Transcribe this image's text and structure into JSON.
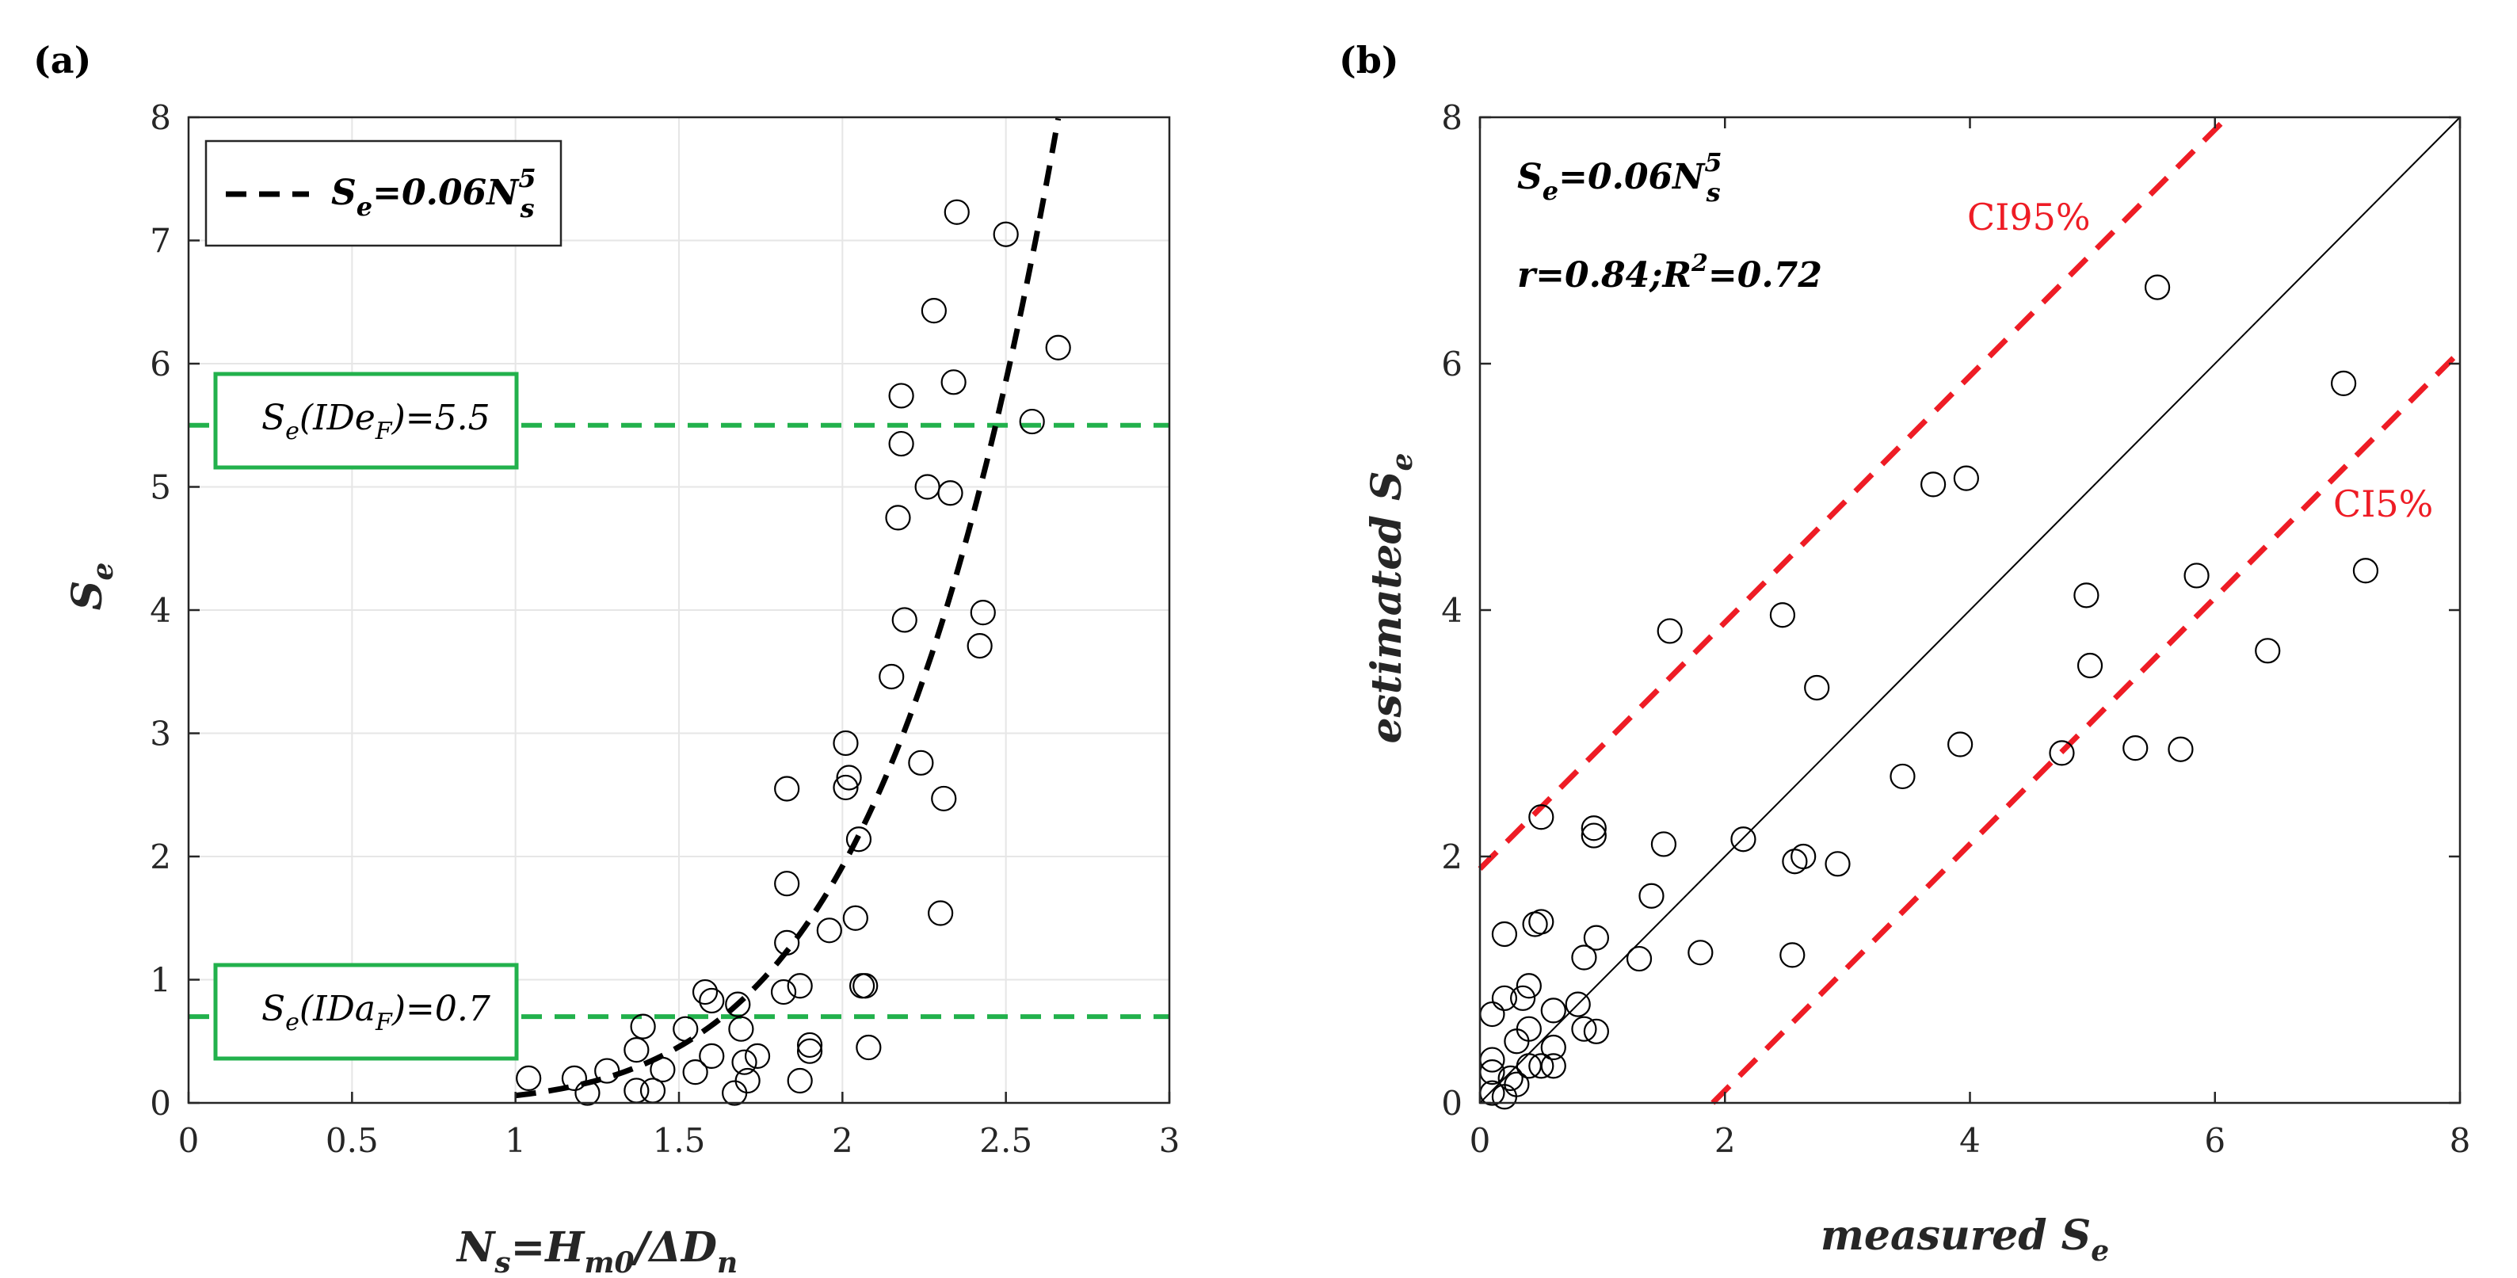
{
  "chart_data": [
    {
      "panel_label": "(a)",
      "type": "scatter",
      "xlim": [
        0,
        3
      ],
      "ylim": [
        0,
        8
      ],
      "xticks": [
        "0",
        "0.5",
        "1",
        "1.5",
        "2",
        "2.5",
        "3"
      ],
      "yticks": [
        "0",
        "1",
        "2",
        "3",
        "4",
        "5",
        "6",
        "7",
        "8"
      ],
      "xlabel": {
        "main": "N",
        "sub": "s",
        "mid": "=H",
        "sub2": "m0",
        "tail": "/ΔD",
        "sub3": "n"
      },
      "ylabel": {
        "main": "S",
        "sub": "e"
      },
      "grid": true,
      "legend": {
        "position": "top-left",
        "entry": {
          "main": "S",
          "sub": "e",
          "mid": "=0.06N",
          "sup": "5",
          "sub2": "s"
        }
      },
      "fit_curve": {
        "formula": "Se = 0.06 * Ns^5",
        "coef": 0.06,
        "power": 5,
        "x_range": [
          1.0,
          2.66
        ],
        "color": "#000000",
        "style": "dashed"
      },
      "thresholds": [
        {
          "y": 5.5,
          "color": "#22b14c",
          "label": {
            "main": "S",
            "sub": "e",
            "mid": "(IDe",
            "sub2": "F",
            "tail": ")=5.5"
          }
        },
        {
          "y": 0.7,
          "color": "#22b14c",
          "label": {
            "main": "S",
            "sub": "e",
            "mid": "(IDa",
            "sub2": "F",
            "tail": ")=0.7"
          }
        }
      ],
      "points": [
        [
          1.04,
          0.2
        ],
        [
          1.18,
          0.2
        ],
        [
          1.22,
          0.08
        ],
        [
          1.28,
          0.26
        ],
        [
          1.37,
          0.43
        ],
        [
          1.37,
          0.1
        ],
        [
          1.39,
          0.62
        ],
        [
          1.42,
          0.1
        ],
        [
          1.45,
          0.27
        ],
        [
          1.52,
          0.6
        ],
        [
          1.55,
          0.25
        ],
        [
          1.58,
          0.9
        ],
        [
          1.6,
          0.83
        ],
        [
          1.6,
          0.38
        ],
        [
          1.67,
          0.08
        ],
        [
          1.68,
          0.8
        ],
        [
          1.69,
          0.6
        ],
        [
          1.7,
          0.33
        ],
        [
          1.71,
          0.18
        ],
        [
          1.74,
          0.38
        ],
        [
          1.82,
          0.9
        ],
        [
          1.83,
          1.3
        ],
        [
          1.83,
          1.78
        ],
        [
          1.83,
          2.55
        ],
        [
          1.87,
          0.95
        ],
        [
          1.87,
          0.18
        ],
        [
          1.9,
          0.42
        ],
        [
          1.9,
          0.47
        ],
        [
          1.96,
          1.4
        ],
        [
          2.01,
          2.92
        ],
        [
          2.01,
          2.56
        ],
        [
          2.02,
          2.64
        ],
        [
          2.04,
          1.5
        ],
        [
          2.05,
          2.14
        ],
        [
          2.06,
          0.95
        ],
        [
          2.07,
          0.95
        ],
        [
          2.08,
          0.45
        ],
        [
          2.15,
          3.46
        ],
        [
          2.17,
          4.75
        ],
        [
          2.18,
          5.35
        ],
        [
          2.18,
          5.74
        ],
        [
          2.19,
          3.92
        ],
        [
          2.24,
          2.76
        ],
        [
          2.26,
          5.0
        ],
        [
          2.28,
          6.43
        ],
        [
          2.3,
          1.54
        ],
        [
          2.31,
          2.47
        ],
        [
          2.33,
          4.95
        ],
        [
          2.34,
          5.85
        ],
        [
          2.35,
          7.23
        ],
        [
          2.42,
          3.71
        ],
        [
          2.43,
          3.98
        ],
        [
          2.5,
          7.05
        ],
        [
          2.58,
          5.53
        ],
        [
          2.66,
          6.13
        ]
      ]
    },
    {
      "panel_label": "(b)",
      "type": "scatter",
      "xlim": [
        0,
        8
      ],
      "ylim": [
        0,
        8
      ],
      "xticks": [
        "0",
        "2",
        "4",
        "6",
        "8"
      ],
      "yticks": [
        "0",
        "2",
        "4",
        "6",
        "8"
      ],
      "xlabel": {
        "main": "measured ",
        "var": "S",
        "sub": "e"
      },
      "ylabel": {
        "main": "estimated ",
        "var": "S",
        "sub": "e"
      },
      "grid": false,
      "annotations": {
        "formula": {
          "main": "S",
          "sub": "e",
          "mid": "=0.06N",
          "sup": "5",
          "sub2": "s"
        },
        "stats": {
          "pre": "r=0.84;R",
          "sup": "2",
          "post": "=0.72"
        }
      },
      "identity_line": {
        "from": [
          0,
          0
        ],
        "to": [
          8,
          8
        ],
        "color": "#000000"
      },
      "ci_lines": [
        {
          "label": "CI95%",
          "offset": 1.9,
          "color": "#ee1c25"
        },
        {
          "label": "CI5%",
          "offset": -1.9,
          "color": "#ee1c25"
        }
      ],
      "points": [
        [
          0.1,
          0.08
        ],
        [
          0.1,
          0.25
        ],
        [
          0.1,
          0.35
        ],
        [
          0.1,
          0.72
        ],
        [
          0.2,
          0.85
        ],
        [
          0.2,
          1.37
        ],
        [
          0.2,
          0.05
        ],
        [
          0.25,
          0.2
        ],
        [
          0.3,
          0.5
        ],
        [
          0.3,
          0.15
        ],
        [
          0.35,
          0.85
        ],
        [
          0.4,
          0.95
        ],
        [
          0.4,
          0.6
        ],
        [
          0.4,
          0.3
        ],
        [
          0.45,
          1.45
        ],
        [
          0.5,
          1.47
        ],
        [
          0.5,
          2.32
        ],
        [
          0.5,
          0.3
        ],
        [
          0.6,
          0.75
        ],
        [
          0.6,
          0.45
        ],
        [
          0.6,
          0.3
        ],
        [
          0.8,
          0.8
        ],
        [
          0.85,
          1.18
        ],
        [
          0.85,
          0.6
        ],
        [
          0.93,
          2.17
        ],
        [
          0.93,
          2.23
        ],
        [
          0.95,
          1.34
        ],
        [
          0.95,
          0.58
        ],
        [
          1.3,
          1.17
        ],
        [
          1.4,
          1.68
        ],
        [
          1.5,
          2.1
        ],
        [
          1.55,
          3.83
        ],
        [
          1.8,
          1.22
        ],
        [
          2.15,
          2.14
        ],
        [
          2.47,
          3.96
        ],
        [
          2.55,
          1.2
        ],
        [
          2.57,
          1.96
        ],
        [
          2.64,
          2.0
        ],
        [
          2.75,
          3.37
        ],
        [
          2.92,
          1.94
        ],
        [
          3.45,
          2.65
        ],
        [
          3.7,
          5.02
        ],
        [
          3.92,
          2.91
        ],
        [
          3.97,
          5.07
        ],
        [
          4.75,
          2.84
        ],
        [
          4.95,
          4.12
        ],
        [
          4.98,
          3.55
        ],
        [
          5.35,
          2.88
        ],
        [
          5.53,
          6.62
        ],
        [
          5.72,
          2.87
        ],
        [
          5.85,
          4.28
        ],
        [
          6.43,
          3.67
        ],
        [
          7.05,
          5.84
        ],
        [
          7.23,
          4.32
        ]
      ]
    }
  ]
}
